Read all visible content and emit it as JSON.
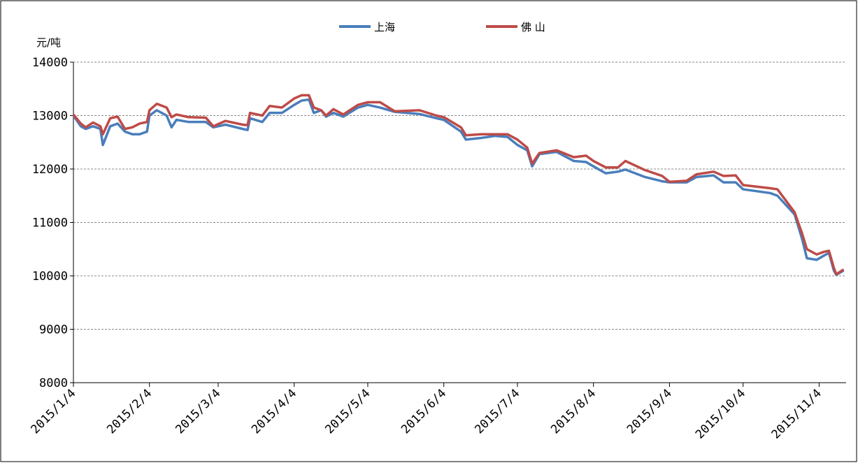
{
  "chart_data": {
    "type": "line",
    "y_label": "元/吨",
    "x": [
      "2015/1/4",
      "2015/1/7",
      "2015/1/9",
      "2015/1/12",
      "2015/1/15",
      "2015/1/16",
      "2015/1/19",
      "2015/1/22",
      "2015/1/25",
      "2015/1/28",
      "2015/1/31",
      "2015/2/3",
      "2015/2/4",
      "2015/2/7",
      "2015/2/11",
      "2015/2/13",
      "2015/2/15",
      "2015/2/20",
      "2015/2/27",
      "2015/3/2",
      "2015/3/7",
      "2015/3/14",
      "2015/3/16",
      "2015/3/17",
      "2015/3/22",
      "2015/3/25",
      "2015/3/30",
      "2015/4/4",
      "2015/4/7",
      "2015/4/10",
      "2015/4/12",
      "2015/4/15",
      "2015/4/17",
      "2015/4/20",
      "2015/4/24",
      "2015/4/30",
      "2015/5/4",
      "2015/5/9",
      "2015/5/15",
      "2015/5/25",
      "2015/6/1",
      "2015/6/4",
      "2015/6/11",
      "2015/6/13",
      "2015/6/19",
      "2015/6/25",
      "2015/6/30",
      "2015/7/4",
      "2015/7/8",
      "2015/7/10",
      "2015/7/13",
      "2015/7/20",
      "2015/7/27",
      "2015/8/1",
      "2015/8/4",
      "2015/8/9",
      "2015/8/14",
      "2015/8/17",
      "2015/8/25",
      "2015/9/1",
      "2015/9/4",
      "2015/9/11",
      "2015/9/15",
      "2015/9/22",
      "2015/9/26",
      "2015/10/1",
      "2015/10/4",
      "2015/10/15",
      "2015/10/18",
      "2015/10/25",
      "2015/10/28",
      "2015/10/30",
      "2015/11/3",
      "2015/11/6",
      "2015/11/8",
      "2015/11/10",
      "2015/11/11",
      "2015/11/14"
    ],
    "series": [
      {
        "name": "上海",
        "color": "#4a7ebb",
        "values": [
          13000,
          12800,
          12750,
          12800,
          12750,
          12450,
          12800,
          12850,
          12700,
          12650,
          12650,
          12700,
          13000,
          13100,
          13000,
          12780,
          12920,
          12880,
          12880,
          12780,
          12830,
          12750,
          12730,
          12950,
          12880,
          13050,
          13050,
          13200,
          13280,
          13300,
          13050,
          13100,
          12980,
          13050,
          12980,
          13150,
          13200,
          13150,
          13070,
          13030,
          12950,
          12920,
          12700,
          12550,
          12580,
          12620,
          12600,
          12450,
          12350,
          12050,
          12280,
          12320,
          12150,
          12130,
          12050,
          11920,
          11950,
          11990,
          11850,
          11770,
          11750,
          11750,
          11850,
          11880,
          11750,
          11750,
          11620,
          11550,
          11500,
          11150,
          10700,
          10330,
          10300,
          10380,
          10430,
          10100,
          10020,
          10100
        ]
      },
      {
        "name": "佛 山",
        "color": "#be4b48",
        "values": [
          13020,
          12850,
          12780,
          12870,
          12800,
          12650,
          12950,
          12980,
          12750,
          12780,
          12850,
          12880,
          13100,
          13220,
          13150,
          12970,
          13020,
          12970,
          12960,
          12800,
          12900,
          12830,
          12820,
          13050,
          13000,
          13180,
          13150,
          13320,
          13380,
          13380,
          13150,
          13100,
          13000,
          13120,
          13020,
          13200,
          13250,
          13250,
          13080,
          13100,
          13000,
          12970,
          12780,
          12630,
          12650,
          12650,
          12650,
          12550,
          12400,
          12100,
          12300,
          12350,
          12220,
          12250,
          12150,
          12030,
          12030,
          12150,
          11980,
          11870,
          11760,
          11780,
          11900,
          11950,
          11870,
          11880,
          11700,
          11640,
          11620,
          11190,
          10800,
          10500,
          10400,
          10450,
          10470,
          10150,
          10030,
          10120
        ]
      }
    ],
    "xlim": [
      "2015/1/4",
      "2015/11/15"
    ],
    "xticks": [
      "2015/1/4",
      "2015/2/4",
      "2015/3/4",
      "2015/4/4",
      "2015/5/4",
      "2015/6/4",
      "2015/7/4",
      "2015/8/4",
      "2015/9/4",
      "2015/10/4",
      "2015/11/4"
    ],
    "ylim": [
      8000,
      14000
    ],
    "yticks": [
      8000,
      9000,
      10000,
      11000,
      12000,
      13000,
      14000
    ],
    "grid": true,
    "legend": "top"
  }
}
